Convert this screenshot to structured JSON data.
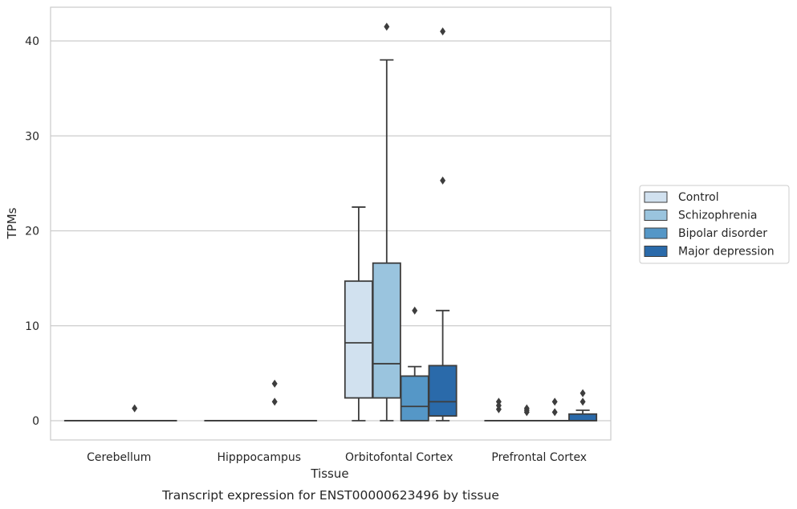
{
  "chart_data": {
    "type": "box",
    "title": "Transcript expression for ENST00000623496 by tissue",
    "xlabel": "Tissue",
    "ylabel": "TPMs",
    "ylim": [
      -2,
      43.5
    ],
    "yticks": [
      0,
      10,
      20,
      30,
      40
    ],
    "grid": true,
    "legend_position": "right",
    "categories": [
      "Cerebellum",
      "Hipppocampus",
      "Orbitofontal Cortex",
      "Prefrontal Cortex"
    ],
    "series": [
      {
        "name": "Control",
        "color": "#d1e1ef",
        "boxes": [
          {
            "whislo": 0,
            "q1": 0,
            "med": 0,
            "q3": 0,
            "whishi": 0,
            "fliers": []
          },
          {
            "whislo": 0,
            "q1": 0,
            "med": 0,
            "q3": 0,
            "whishi": 0,
            "fliers": []
          },
          {
            "whislo": 0,
            "q1": 2.4,
            "med": 8.2,
            "q3": 14.7,
            "whishi": 22.5,
            "fliers": []
          },
          {
            "whislo": 0,
            "q1": 0,
            "med": 0,
            "q3": 0,
            "whishi": 0,
            "fliers": [
              1.2,
              1.6,
              2.0
            ]
          }
        ]
      },
      {
        "name": "Schizophrenia",
        "color": "#9ac4de",
        "boxes": [
          {
            "whislo": 0,
            "q1": 0,
            "med": 0,
            "q3": 0,
            "whishi": 0,
            "fliers": []
          },
          {
            "whislo": 0,
            "q1": 0,
            "med": 0,
            "q3": 0,
            "whishi": 0,
            "fliers": []
          },
          {
            "whislo": 0,
            "q1": 2.4,
            "med": 6.0,
            "q3": 16.6,
            "whishi": 38.0,
            "fliers": [
              41.5
            ]
          },
          {
            "whislo": 0,
            "q1": 0,
            "med": 0,
            "q3": 0,
            "whishi": 0,
            "fliers": [
              0.9,
              1.1,
              1.3
            ]
          }
        ]
      },
      {
        "name": "Bipolar disorder",
        "color": "#5597c7",
        "boxes": [
          {
            "whislo": 0,
            "q1": 0,
            "med": 0,
            "q3": 0,
            "whishi": 0,
            "fliers": [
              1.3
            ]
          },
          {
            "whislo": 0,
            "q1": 0,
            "med": 0,
            "q3": 0,
            "whishi": 0,
            "fliers": [
              2.0,
              3.9
            ]
          },
          {
            "whislo": 0,
            "q1": 0,
            "med": 1.5,
            "q3": 4.7,
            "whishi": 5.7,
            "fliers": [
              11.6
            ]
          },
          {
            "whislo": 0,
            "q1": 0,
            "med": 0,
            "q3": 0,
            "whishi": 0,
            "fliers": [
              0.9,
              2.0
            ]
          }
        ]
      },
      {
        "name": "Major depression",
        "color": "#2a6aaa",
        "boxes": [
          {
            "whislo": 0,
            "q1": 0,
            "med": 0,
            "q3": 0,
            "whishi": 0,
            "fliers": []
          },
          {
            "whislo": 0,
            "q1": 0,
            "med": 0,
            "q3": 0,
            "whishi": 0,
            "fliers": []
          },
          {
            "whislo": 0,
            "q1": 0.5,
            "med": 2.0,
            "q3": 5.8,
            "whishi": 11.6,
            "fliers": [
              25.3,
              41.0
            ]
          },
          {
            "whislo": 0,
            "q1": 0,
            "med": 0,
            "q3": 0.7,
            "whishi": 1.1,
            "fliers": [
              2.0,
              2.9
            ]
          }
        ]
      }
    ]
  }
}
